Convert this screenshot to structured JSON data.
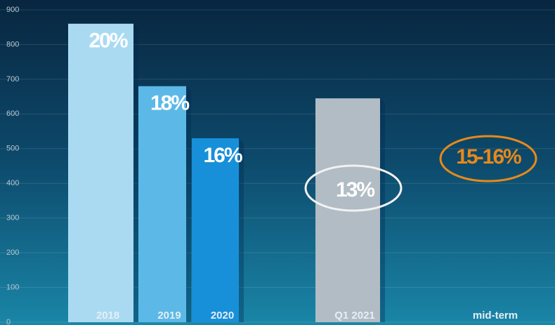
{
  "chart_data": {
    "type": "bar",
    "categories": [
      "2018",
      "2019",
      "2020",
      "Q1 2021",
      "mid-term"
    ],
    "values": [
      860,
      680,
      530,
      645,
      null
    ],
    "labels": [
      "20%",
      "18%",
      "16%",
      "13%",
      "15-16%"
    ],
    "colors": [
      "#a9daf2",
      "#5cb9e7",
      "#1790d9",
      "#b1bcc4",
      "#e8891a"
    ],
    "ylim": [
      0,
      900
    ],
    "yticks": [
      0,
      100,
      200,
      300,
      400,
      500,
      600,
      700,
      800,
      900
    ],
    "grid": true
  }
}
